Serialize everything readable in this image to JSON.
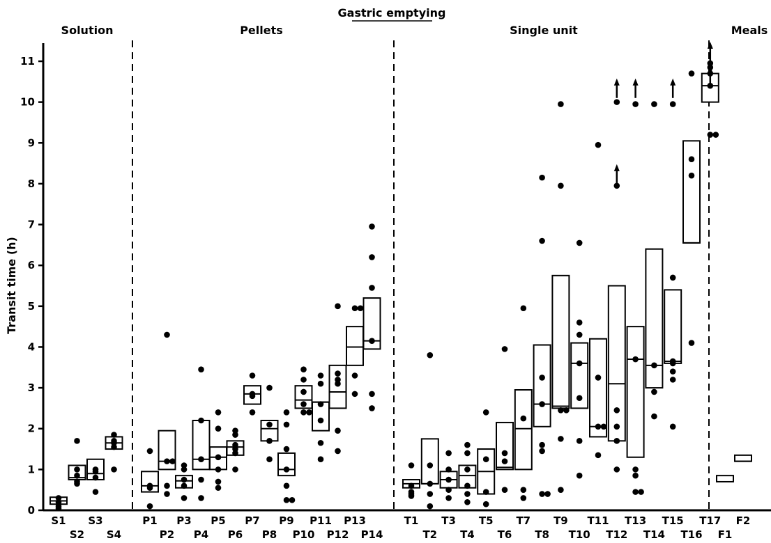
{
  "chart_data": {
    "type": "box-dot",
    "title": "Gastric emptying",
    "ylabel": "Transit time (h)",
    "ylim": [
      0,
      11
    ],
    "yticks": [
      "0",
      "1",
      "2",
      "3",
      "4",
      "5",
      "6",
      "7",
      "8",
      "9",
      "10",
      "11"
    ],
    "sections": [
      "Solution",
      "Pellets",
      "Single unit",
      "Meals"
    ],
    "categories": [
      {
        "name": "S1",
        "section": 0,
        "box": [
          0.15,
          0.32
        ],
        "med": 0.23,
        "points": [
          0.05,
          0.1,
          0.2,
          0.3
        ]
      },
      {
        "name": "S2",
        "section": 0,
        "box": [
          0.75,
          1.1
        ],
        "med": 0.8,
        "points": [
          0.65,
          0.7,
          0.85,
          1.0,
          1.7
        ]
      },
      {
        "name": "S3",
        "section": 0,
        "box": [
          0.75,
          1.25
        ],
        "med": 0.9,
        "points": [
          0.45,
          0.8,
          0.95,
          1.0
        ]
      },
      {
        "name": "S4",
        "section": 0,
        "box": [
          1.5,
          1.8
        ],
        "med": 1.65,
        "points": [
          1.0,
          1.55,
          1.65,
          1.7,
          1.85
        ]
      },
      {
        "name": "P1",
        "section": 1,
        "box": [
          0.45,
          0.95
        ],
        "med": 0.6,
        "points": [
          0.1,
          0.55,
          0.6,
          1.45
        ]
      },
      {
        "name": "P2",
        "section": 1,
        "box": [
          1.0,
          1.95
        ],
        "med": 1.2,
        "points": [
          0.4,
          0.6,
          1.2,
          1.2,
          4.3
        ]
      },
      {
        "name": "P3",
        "section": 1,
        "box": [
          0.55,
          0.85
        ],
        "med": 0.72,
        "points": [
          0.3,
          0.6,
          0.75,
          1.0,
          1.1
        ]
      },
      {
        "name": "P4",
        "section": 1,
        "box": [
          1.0,
          2.2
        ],
        "med": 1.25,
        "points": [
          0.3,
          0.75,
          1.25,
          2.2,
          3.45
        ]
      },
      {
        "name": "P5",
        "section": 1,
        "box": [
          1.0,
          1.55
        ],
        "med": 1.3,
        "points": [
          0.55,
          0.7,
          1.0,
          1.3,
          2.0,
          2.4
        ]
      },
      {
        "name": "P6",
        "section": 1,
        "box": [
          1.35,
          1.7
        ],
        "med": 1.55,
        "points": [
          1.0,
          1.4,
          1.5,
          1.6,
          1.85,
          1.95
        ]
      },
      {
        "name": "P7",
        "section": 1,
        "box": [
          2.6,
          3.05
        ],
        "med": 2.85,
        "points": [
          2.4,
          2.8,
          2.85,
          3.3
        ]
      },
      {
        "name": "P8",
        "section": 1,
        "box": [
          1.7,
          2.2
        ],
        "med": 2.0,
        "points": [
          1.25,
          1.7,
          2.1,
          3.0
        ]
      },
      {
        "name": "P9",
        "section": 1,
        "box": [
          0.85,
          1.4
        ],
        "med": 1.0,
        "points": [
          0.25,
          0.25,
          0.6,
          1.0,
          1.5,
          2.1,
          2.4
        ]
      },
      {
        "name": "P10",
        "section": 1,
        "box": [
          2.5,
          3.05
        ],
        "med": 2.7,
        "points": [
          2.4,
          2.4,
          2.6,
          2.9,
          3.2,
          3.45
        ]
      },
      {
        "name": "P11",
        "section": 1,
        "box": [
          1.95,
          2.65
        ],
        "med": 2.65,
        "points": [
          1.25,
          1.65,
          2.2,
          2.6,
          3.1,
          3.3
        ]
      },
      {
        "name": "P12",
        "section": 1,
        "box": [
          2.5,
          3.55
        ],
        "med": 2.9,
        "points": [
          1.45,
          1.95,
          3.1,
          3.2,
          3.35,
          5.0
        ]
      },
      {
        "name": "P13",
        "section": 1,
        "box": [
          3.55,
          4.5
        ],
        "med": 4.0,
        "points": [
          2.85,
          3.3,
          4.95,
          4.95
        ]
      },
      {
        "name": "P14",
        "section": 1,
        "box": [
          3.95,
          5.2
        ],
        "med": 4.15,
        "points": [
          2.5,
          2.85,
          4.15,
          5.45,
          6.2,
          6.95
        ]
      },
      {
        "name": "T1",
        "section": 2,
        "box": [
          0.55,
          0.75
        ],
        "med": 0.65,
        "points": [
          0.35,
          0.4,
          0.45,
          0.6,
          1.1
        ]
      },
      {
        "name": "T2",
        "section": 2,
        "box": [
          0.65,
          1.75
        ],
        "med": 0.65,
        "points": [
          0.1,
          0.4,
          0.65,
          1.1,
          3.8
        ]
      },
      {
        "name": "T3",
        "section": 2,
        "box": [
          0.55,
          0.95
        ],
        "med": 0.75,
        "points": [
          0.3,
          0.5,
          0.75,
          1.0,
          1.4
        ]
      },
      {
        "name": "T4",
        "section": 2,
        "box": [
          0.55,
          1.1
        ],
        "med": 0.85,
        "points": [
          0.2,
          0.4,
          0.6,
          1.0,
          1.4,
          1.6
        ]
      },
      {
        "name": "T5",
        "section": 2,
        "box": [
          0.4,
          1.5
        ],
        "med": 0.95,
        "points": [
          0.15,
          0.45,
          1.25,
          2.4
        ]
      },
      {
        "name": "T6",
        "section": 2,
        "box": [
          1.0,
          2.15
        ],
        "med": 1.05,
        "points": [
          0.5,
          1.2,
          1.4,
          3.95
        ]
      },
      {
        "name": "T7",
        "section": 2,
        "box": [
          1.0,
          2.95
        ],
        "med": 2.0,
        "points": [
          0.3,
          0.5,
          2.25,
          4.95
        ]
      },
      {
        "name": "T8",
        "section": 2,
        "box": [
          2.05,
          4.05
        ],
        "med": 2.6,
        "points": [
          0.4,
          0.4,
          1.45,
          1.6,
          2.6,
          3.25,
          6.6,
          8.15
        ]
      },
      {
        "name": "T9",
        "section": 2,
        "box": [
          2.5,
          5.75
        ],
        "med": 2.55,
        "points": [
          0.5,
          1.75,
          2.45,
          2.45,
          7.95,
          9.95
        ]
      },
      {
        "name": "T10",
        "section": 2,
        "box": [
          2.5,
          4.1
        ],
        "med": 3.6,
        "points": [
          0.85,
          1.7,
          2.75,
          3.6,
          4.3,
          4.6,
          6.55
        ]
      },
      {
        "name": "T11",
        "section": 2,
        "box": [
          1.8,
          4.2
        ],
        "med": 2.05,
        "points": [
          1.35,
          2.05,
          2.05,
          3.25,
          8.95
        ]
      },
      {
        "name": "T12",
        "section": 2,
        "box": [
          1.7,
          5.5
        ],
        "med": 3.1,
        "points": [
          1.0,
          1.7,
          2.05,
          2.45,
          7.95,
          10.0
        ]
      },
      {
        "name": "T13",
        "section": 2,
        "box": [
          1.3,
          4.5
        ],
        "med": 3.7,
        "points": [
          0.45,
          0.45,
          0.85,
          1.0,
          3.7,
          9.95
        ]
      },
      {
        "name": "T14",
        "section": 2,
        "box": [
          3.0,
          6.4
        ],
        "med": 3.55,
        "points": [
          2.3,
          2.9,
          3.55,
          9.95
        ]
      },
      {
        "name": "T15",
        "section": 2,
        "box": [
          3.6,
          5.4
        ],
        "med": 3.65,
        "points": [
          2.05,
          3.2,
          3.4,
          3.6,
          3.65,
          5.7,
          9.95
        ]
      },
      {
        "name": "T16",
        "section": 2,
        "box": [
          6.55,
          9.05
        ],
        "med": 6.55,
        "points": [
          4.1,
          8.2,
          8.6,
          10.7
        ]
      },
      {
        "name": "T17",
        "section": 2,
        "box": [
          10.0,
          10.7
        ],
        "med": 10.4,
        "points": [
          9.2,
          9.2,
          10.4,
          10.7,
          10.85,
          10.95
        ]
      },
      {
        "name": "F1",
        "section": 3,
        "box": [
          0.7,
          0.85
        ],
        "med": 0.7,
        "points": []
      },
      {
        "name": "F2",
        "section": 3,
        "box": [
          1.2,
          1.35
        ],
        "med": 1.2,
        "points": []
      }
    ],
    "arrows": [
      {
        "cat": "T12",
        "y": 8.0
      },
      {
        "cat": "T12",
        "y": 10.1
      },
      {
        "cat": "T13",
        "y": 10.1
      },
      {
        "cat": "T15",
        "y": 10.1
      },
      {
        "cat": "T17",
        "y": 10.4
      },
      {
        "cat": "T17",
        "y": 11.0
      }
    ]
  }
}
